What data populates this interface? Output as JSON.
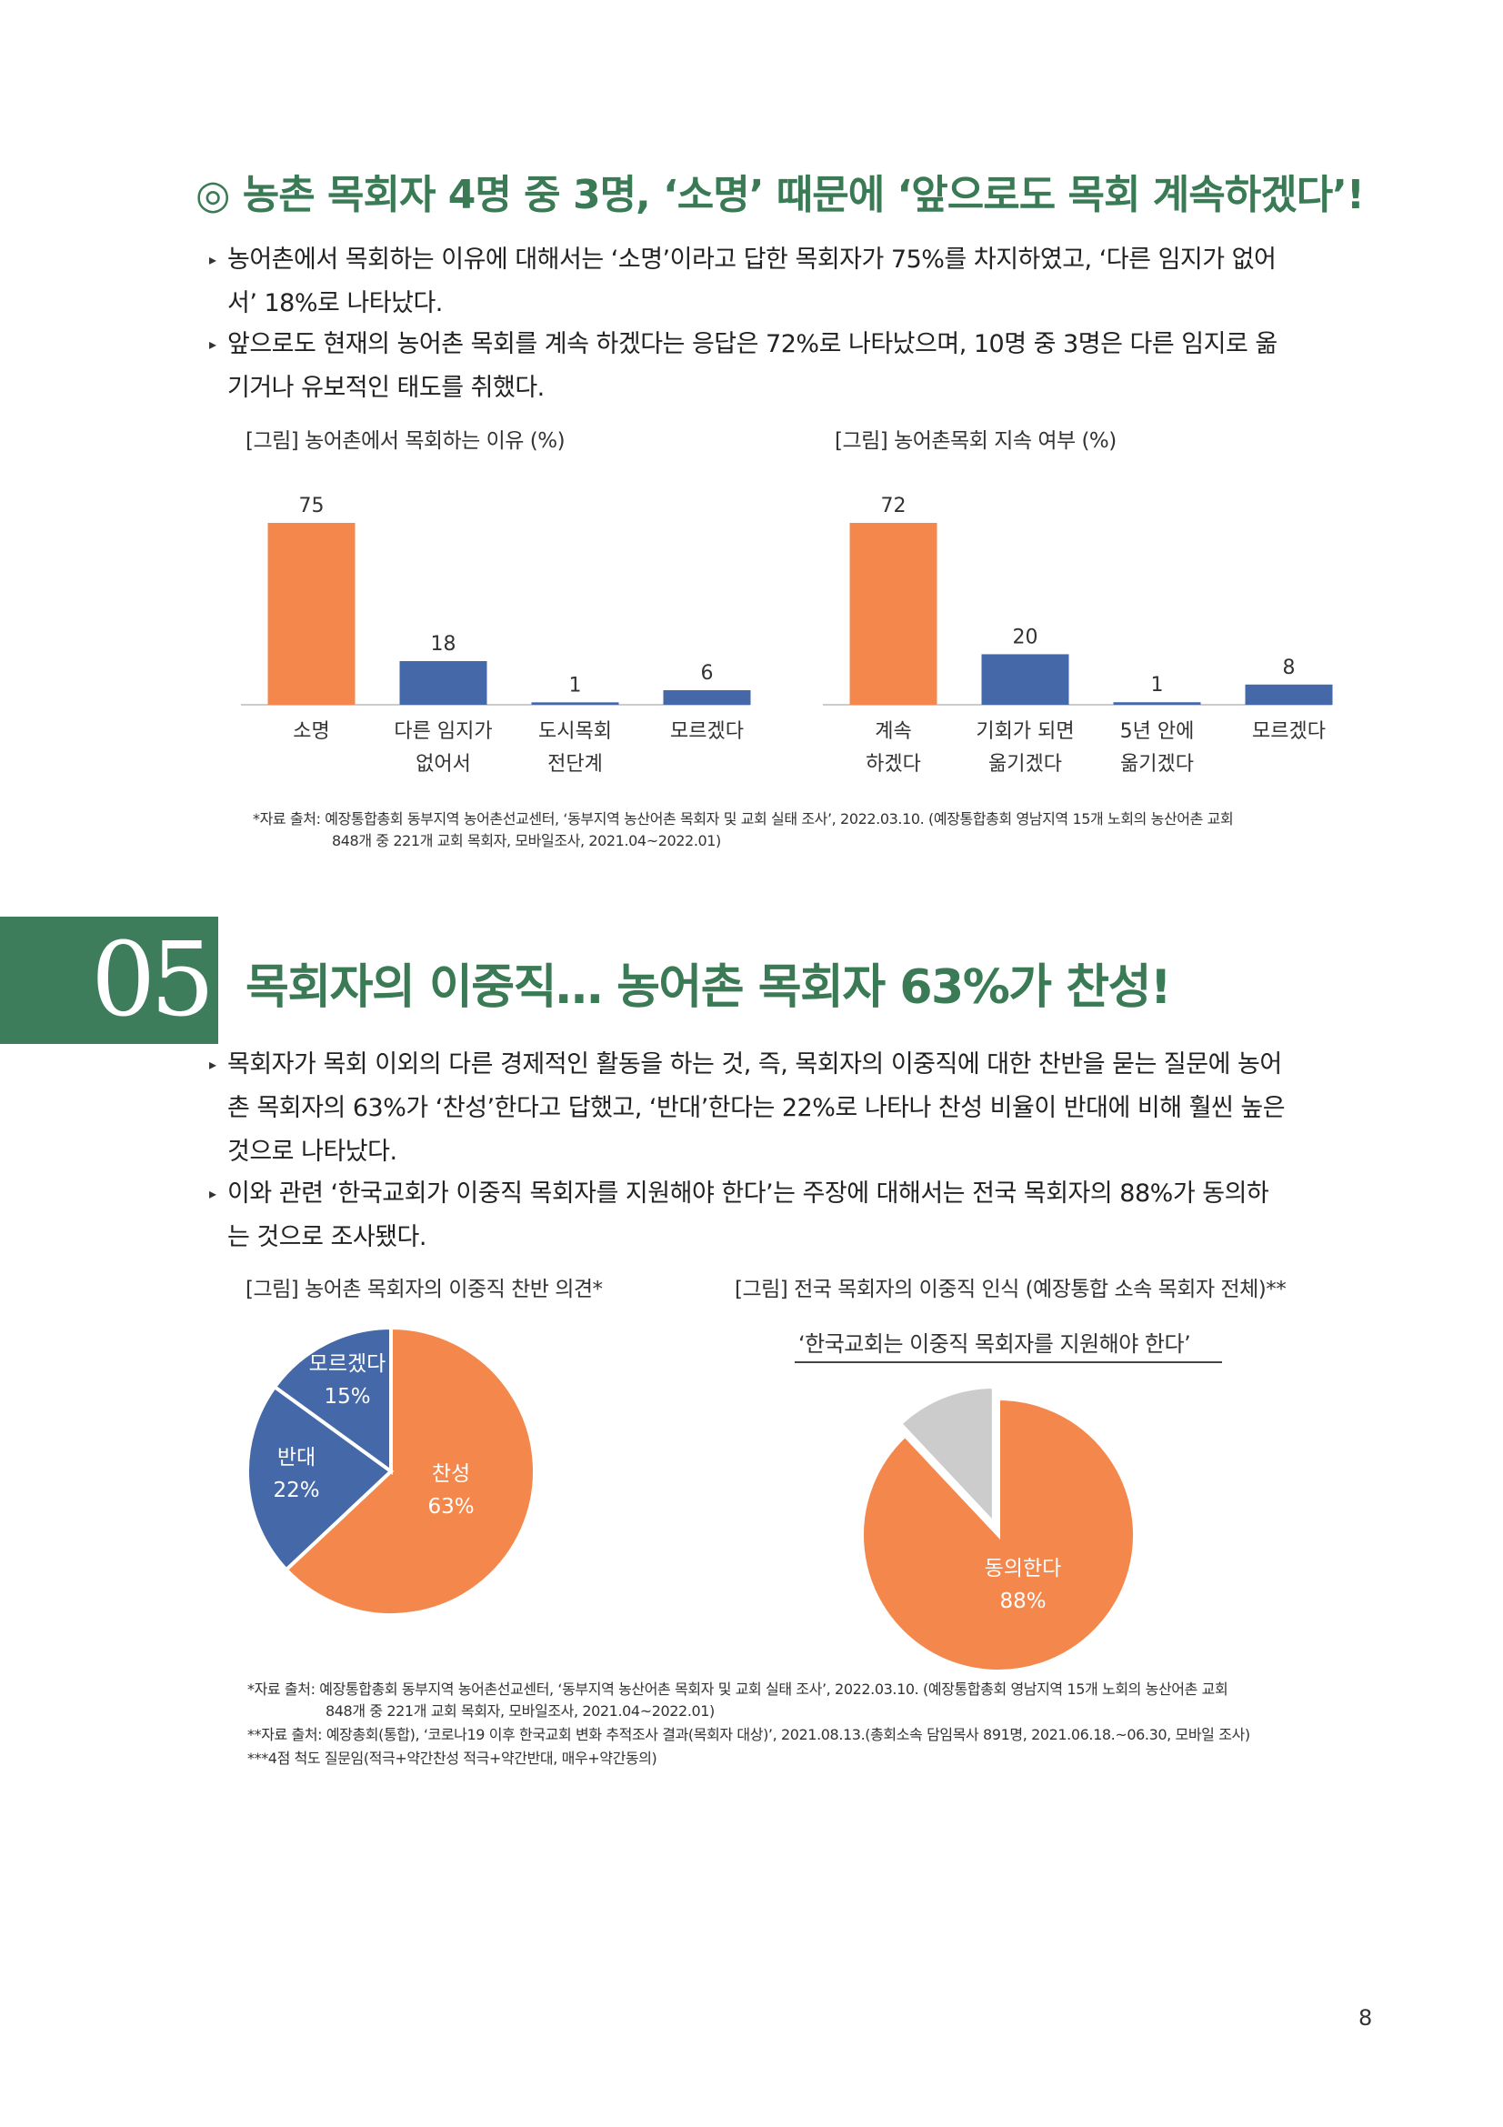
{
  "section1": {
    "heading": "◎ 농촌 목회자 4명 중 3명, ‘소명’ 때문에 ‘앞으로도 목회 계속하겠다’!",
    "bullets": [
      {
        "line1": "농어촌에서 목회하는 이유에 대해서는 ‘소명’이라고 답한 목회자가 75%를 차지하였고, ‘다른 임지가 없어",
        "line2": "서’ 18%로 나타났다."
      },
      {
        "line1": "앞으로도 현재의 농어촌 목회를 계속 하겠다는 응답은 72%로 나타났으며, 10명 중 3명은 다른 임지로 옮",
        "line2": "기거나 유보적인 태도를 취했다."
      }
    ],
    "source": {
      "line1": "*자료 출처: 예장통합총회 동부지역 농어촌선교센터, ‘동부지역 농산어촌 목회자 및 교회 실태 조사’, 2022.03.10. (예장통합총회 영남지역 15개 노회의 농산어촌 교회",
      "line2": "848개 중 221개 교회 목회자, 모바일조사, 2021.04~2022.01)"
    }
  },
  "section2": {
    "number": "05",
    "heading": "목회자의 이중직… 농어촌 목회자 63%가 찬성!",
    "bullets": [
      {
        "line1": "목회자가 목회 이외의 다른 경제적인 활동을 하는 것, 즉, 목회자의 이중직에 대한 찬반을 묻는 질문에 농어",
        "line2": "촌 목회자의 63%가 ‘찬성’한다고 답했고, ‘반대’한다는 22%로 나타나 찬성 비율이 반대에 비해 훨씬 높은",
        "line3": "것으로 나타났다."
      },
      {
        "line1": "이와 관련 ‘한국교회가 이중직 목회자를 지원해야 한다’는 주장에 대해서는 전국 목회자의 88%가 동의하",
        "line2": "는 것으로 조사됐다."
      }
    ],
    "sources": [
      "*자료 출처: 예장통합총회 동부지역 농어촌선교센터, ‘동부지역 농산어촌 목회자 및 교회 실태 조사’, 2022.03.10. (예장통합총회 영남지역 15개 노회의 농산어촌 교회",
      "848개 중 221개 교회 목회자, 모바일조사, 2021.04~2022.01)",
      "**자료 출처: 예장총회(통합), ‘코로나19 이후 한국교회 변화 추적조사 결과(목회자 대상)’, 2021.08.13.(총회소속 담임목사 891명, 2021.06.18.~06.30, 모바일 조사)",
      "***4점 척도 질문임(적극+약간찬성 적극+약간반대, 매우+약간동의)"
    ]
  },
  "page_number": "8",
  "colors": {
    "orange": "#f4874b",
    "blue": "#4468a8",
    "gray": "#cccccc",
    "green": "#3a7a55"
  },
  "chart_data": [
    {
      "type": "bar",
      "title": "[그림] 농어촌에서 목회하는 이유 (%)",
      "categories": [
        [
          "소명"
        ],
        [
          "다른 임지가",
          "없어서"
        ],
        [
          "도시목회",
          "전단계"
        ],
        [
          "모르겠다"
        ]
      ],
      "values": [
        75,
        18,
        1,
        6
      ],
      "bar_colors": [
        "#f4874b",
        "#4468a8",
        "#4468a8",
        "#4468a8"
      ],
      "ylim": [
        0,
        75
      ]
    },
    {
      "type": "bar",
      "title": "[그림] 농어촌목회 지속 여부 (%)",
      "categories": [
        [
          "계속",
          "하겠다"
        ],
        [
          "기회가 되면",
          "옮기겠다"
        ],
        [
          "5년 안에",
          "옮기겠다"
        ],
        [
          "모르겠다"
        ]
      ],
      "values": [
        72,
        20,
        1,
        8
      ],
      "bar_colors": [
        "#f4874b",
        "#4468a8",
        "#4468a8",
        "#4468a8"
      ],
      "ylim": [
        0,
        72
      ]
    },
    {
      "type": "pie",
      "title": "[그림] 농어촌 목회자의 이중직 찬반 의견*",
      "slices": [
        {
          "label": "찬성",
          "value": 63,
          "display": "63%",
          "color": "#f4874b"
        },
        {
          "label": "반대",
          "value": 22,
          "display": "22%",
          "color": "#4468a8"
        },
        {
          "label": "모르겠다",
          "value": 15,
          "display": "15%",
          "color": "#4468a8"
        }
      ]
    },
    {
      "type": "pie",
      "title": "[그림] 전국 목회자의 이중직 인식 (예장통합 소속 목회자 전체)**",
      "subtitle": "‘한국교회는 이중직 목회자를 지원해야 한다’",
      "slices": [
        {
          "label": "동의한다",
          "value": 88,
          "display": "88%",
          "color": "#f4874b"
        },
        {
          "label": "",
          "value": 12,
          "display": "",
          "color": "#cccccc"
        }
      ]
    }
  ]
}
